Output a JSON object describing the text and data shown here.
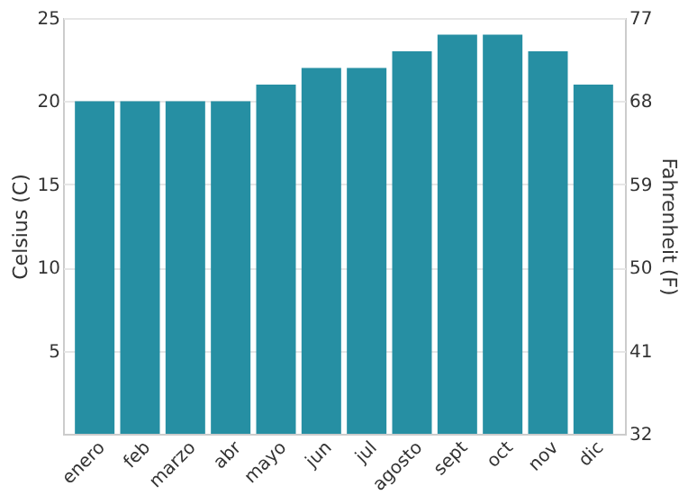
{
  "chart_data": {
    "type": "bar",
    "categories": [
      "enero",
      "feb",
      "marzo",
      "abr",
      "mayo",
      "jun",
      "jul",
      "agosto",
      "sept",
      "oct",
      "nov",
      "dic"
    ],
    "values": [
      20,
      20,
      20,
      20,
      21,
      22,
      22,
      23,
      24,
      24,
      23,
      21
    ],
    "color": "#268fa3",
    "ylabel": "Celsius (C)",
    "y2label": "Fahrenheit (F)",
    "ylim": [
      0,
      25
    ],
    "yticks": [
      5,
      10,
      15,
      20,
      25
    ],
    "y2lim": [
      32,
      77
    ],
    "y2ticks": [
      32,
      41,
      50,
      59,
      68,
      77
    ],
    "grid": "y"
  }
}
